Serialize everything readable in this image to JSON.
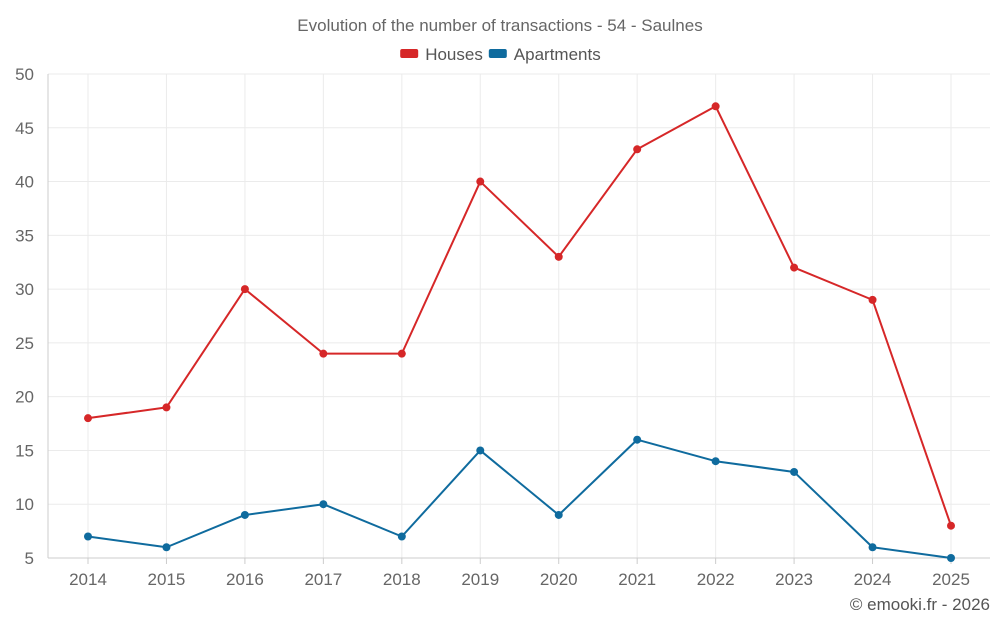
{
  "credit": "© emooki.fr - 2026",
  "chart_data": {
    "type": "line",
    "title": "Evolution of the number of transactions - 54 - Saulnes",
    "xlabel": "",
    "ylabel": "",
    "categories": [
      "2014",
      "2015",
      "2016",
      "2017",
      "2018",
      "2019",
      "2020",
      "2021",
      "2022",
      "2023",
      "2024",
      "2025"
    ],
    "ylim": [
      5,
      50
    ],
    "yticks": [
      5,
      10,
      15,
      20,
      25,
      30,
      35,
      40,
      45,
      50
    ],
    "grid": true,
    "legend_position": "top-center",
    "series": [
      {
        "name": "Houses",
        "color": "#d62728",
        "values": [
          18,
          19,
          30,
          24,
          24,
          40,
          33,
          43,
          47,
          32,
          29,
          8
        ]
      },
      {
        "name": "Apartments",
        "color": "#0f6b9e",
        "values": [
          7,
          6,
          9,
          10,
          7,
          15,
          9,
          16,
          14,
          13,
          6,
          5
        ]
      }
    ]
  }
}
